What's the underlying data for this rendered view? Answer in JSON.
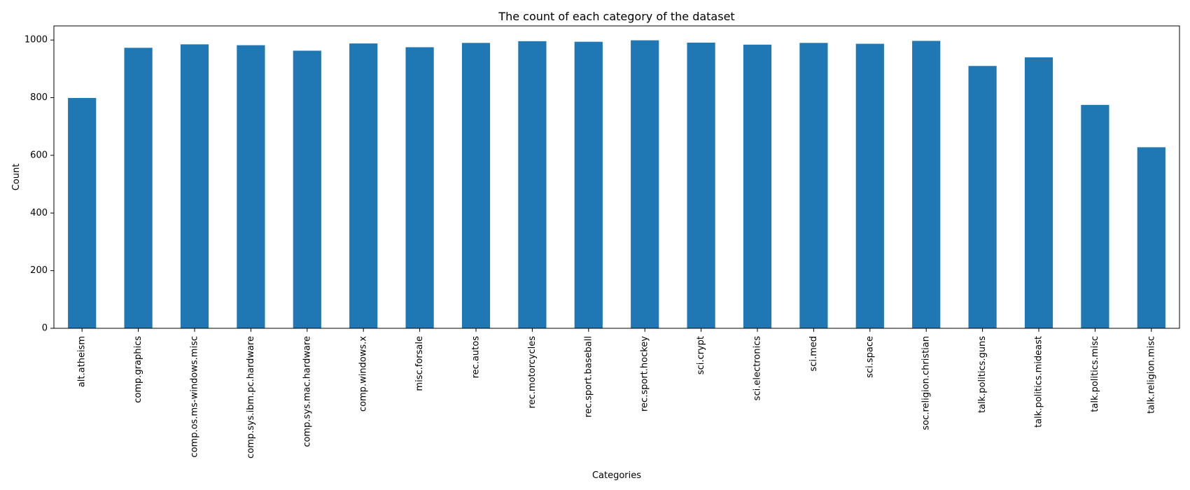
{
  "chart_data": {
    "type": "bar",
    "title": "The count of each category of the dataset",
    "xlabel": "Categories",
    "ylabel": "Count",
    "categories": [
      "alt.atheism",
      "comp.graphics",
      "comp.os.ms-windows.misc",
      "comp.sys.ibm.pc.hardware",
      "comp.sys.mac.hardware",
      "comp.windows.x",
      "misc.forsale",
      "rec.autos",
      "rec.motorcycles",
      "rec.sport.baseball",
      "rec.sport.hockey",
      "sci.crypt",
      "sci.electronics",
      "sci.med",
      "sci.space",
      "soc.religion.christian",
      "talk.politics.guns",
      "talk.politics.mideast",
      "talk.politics.misc",
      "talk.religion.misc"
    ],
    "values": [
      799,
      973,
      985,
      982,
      963,
      988,
      975,
      990,
      996,
      994,
      999,
      991,
      984,
      990,
      987,
      997,
      910,
      940,
      775,
      628
    ],
    "ylim": [
      0,
      1049
    ],
    "yticks": [
      0,
      200,
      400,
      600,
      800,
      1000
    ],
    "bar_color": "#1f77b4",
    "grid": false,
    "legend": "none"
  }
}
